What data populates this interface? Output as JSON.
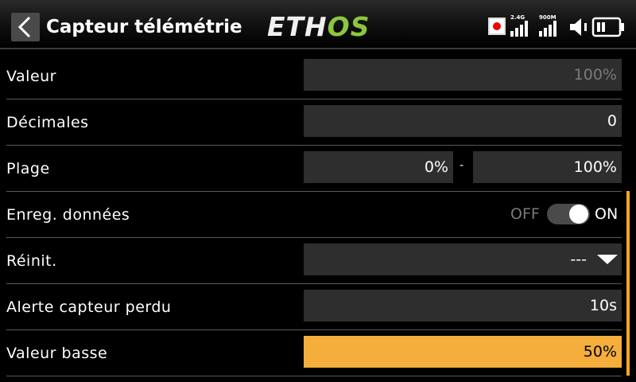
{
  "header": {
    "title": "Capteur télémétrie",
    "logo_left": "ETH",
    "logo_right": "OS",
    "signal_1_label": "2.4G",
    "signal_2_label": "900M"
  },
  "rows": {
    "valeur": {
      "label": "Valeur",
      "value": "100%"
    },
    "decimales": {
      "label": "Décimales",
      "value": "0"
    },
    "plage": {
      "label": "Plage",
      "min": "0%",
      "separator": "-",
      "max": "100%"
    },
    "enreg": {
      "label": "Enreg. données",
      "off_label": "OFF",
      "on_label": "ON",
      "state": "on"
    },
    "reinit": {
      "label": "Réinit.",
      "value": "---"
    },
    "alerte": {
      "label": "Alerte capteur perdu",
      "value": "10s"
    },
    "valeur_basse": {
      "label": "Valeur basse",
      "value": "50%"
    }
  },
  "colors": {
    "accent": "#f5ad3b",
    "logo_os": "#8cc63f",
    "record": "#e00000"
  },
  "icons": [
    "back-icon",
    "record-icon",
    "signal-2.4g-icon",
    "signal-900m-icon",
    "speaker-icon",
    "battery-icon",
    "dropdown-arrow-icon"
  ]
}
